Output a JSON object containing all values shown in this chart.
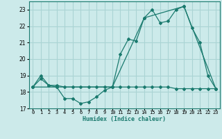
{
  "xlabel": "Humidex (Indice chaleur)",
  "bg_color": "#cceaea",
  "grid_color": "#aad4d4",
  "line_color": "#1a7a6e",
  "xlim": [
    -0.5,
    23.5
  ],
  "ylim": [
    17,
    23.5
  ],
  "yticks": [
    17,
    18,
    19,
    20,
    21,
    22,
    23
  ],
  "xtick_labels": [
    "0",
    "1",
    "2",
    "3",
    "4",
    "5",
    "6",
    "7",
    "8",
    "9",
    "10",
    "11",
    "12",
    "13",
    "14",
    "15",
    "16",
    "17",
    "18",
    "19",
    "20",
    "21",
    "22",
    "23"
  ],
  "series1_x": [
    0,
    1,
    2,
    3,
    4,
    5,
    6,
    7,
    8,
    9,
    10,
    11,
    12,
    13,
    14,
    15,
    16,
    17,
    18,
    19,
    20,
    21,
    22,
    23
  ],
  "series1_y": [
    18.3,
    18.8,
    18.4,
    18.3,
    17.6,
    17.6,
    17.3,
    17.4,
    17.7,
    18.1,
    18.3,
    20.3,
    21.2,
    21.1,
    22.5,
    23.0,
    22.2,
    22.3,
    23.0,
    23.2,
    21.9,
    21.0,
    19.0,
    18.2
  ],
  "series2_x": [
    0,
    1,
    2,
    3,
    4,
    5,
    6,
    7,
    8,
    9,
    10,
    11,
    12,
    13,
    14,
    15,
    16,
    17,
    18,
    19,
    20,
    21,
    22,
    23
  ],
  "series2_y": [
    18.3,
    19.0,
    18.4,
    18.4,
    18.3,
    18.3,
    18.3,
    18.3,
    18.3,
    18.3,
    18.3,
    18.3,
    18.3,
    18.3,
    18.3,
    18.3,
    18.3,
    18.3,
    18.2,
    18.2,
    18.2,
    18.2,
    18.2,
    18.2
  ],
  "series3_x": [
    0,
    3,
    10,
    14,
    19,
    23
  ],
  "series3_y": [
    18.3,
    18.3,
    18.3,
    22.5,
    23.2,
    18.2
  ]
}
